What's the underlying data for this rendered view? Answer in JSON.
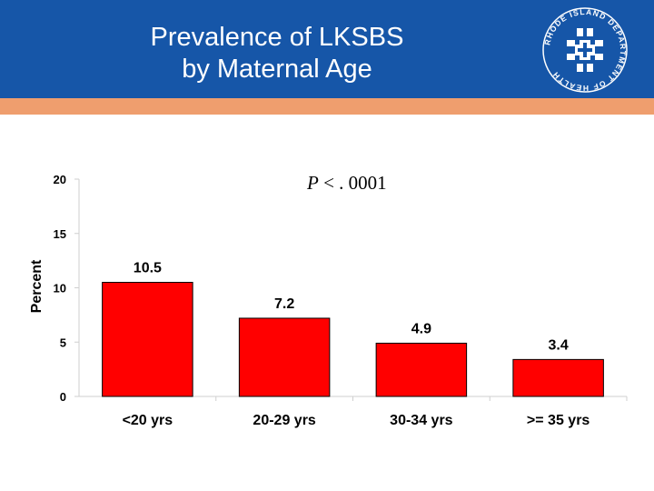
{
  "header": {
    "title_line1": "Prevalence of LKSBS",
    "title_line2": "by Maternal Age",
    "bg_color": "#1656a8",
    "stripe_color": "#ef9e6e",
    "logo": {
      "icon": "rhode-island-department-of-health-seal-icon",
      "text": "RHODE ISLAND DEPARTMENT OF HEALTH"
    }
  },
  "annotation": {
    "p_letter": "P",
    "p_rest": " < . 0001"
  },
  "chart_data": {
    "type": "bar",
    "title": "Prevalence of LKSBS by Maternal Age",
    "xlabel": "",
    "ylabel": "Percent",
    "categories": [
      "<20 yrs",
      "20-29 yrs",
      "30-34 yrs",
      ">= 35 yrs"
    ],
    "values": [
      10.5,
      7.2,
      4.9,
      3.4
    ],
    "value_labels": [
      "10.5",
      "7.2",
      "4.9",
      "3.4"
    ],
    "ylim": [
      0,
      20
    ],
    "yticks": [
      0,
      5,
      10,
      15,
      20
    ],
    "ytick_labels": [
      "0",
      "5",
      "10",
      "15",
      "20"
    ],
    "bar_color": "#ff0000",
    "grid": false
  }
}
